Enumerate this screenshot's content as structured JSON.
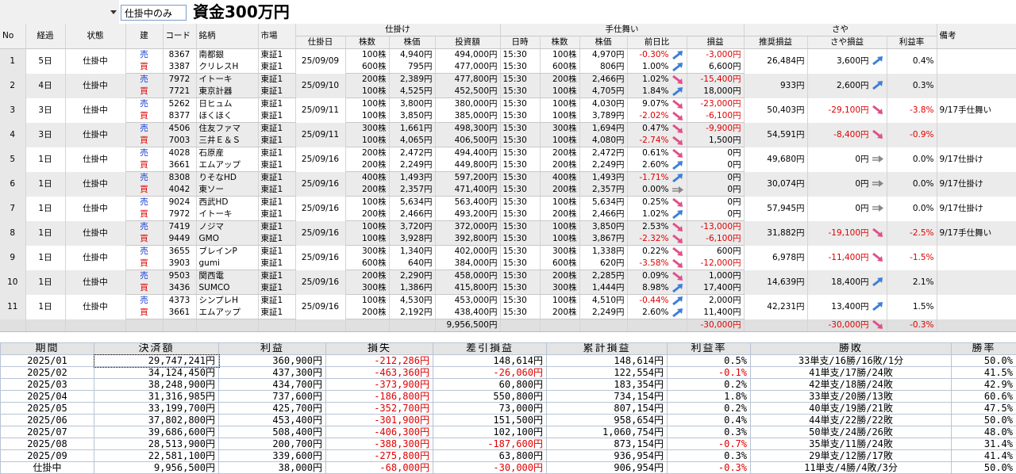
{
  "toolbar": {
    "filter": "仕掛中のみ",
    "title": "資金300万円"
  },
  "positions": {
    "header": {
      "no": "No",
      "elapsed": "経過",
      "status": "状態",
      "side": "建",
      "code": "コード",
      "name": "銘柄",
      "market": "市場",
      "entry": "仕掛け",
      "exit": "手仕舞い",
      "spread": "さや",
      "note": "備考",
      "entry_cols": [
        "仕掛日",
        "株数",
        "株価",
        "投資額"
      ],
      "exit_cols": [
        "日時",
        "株数",
        "株価",
        "前日比",
        "損益"
      ],
      "spread_cols": [
        "推奨損益",
        "さや損益",
        "利益率"
      ]
    },
    "rows": [
      {
        "no": "1",
        "elapsed": "5日",
        "status": "仕掛中",
        "date": "25/09/09",
        "legs": [
          {
            "side": "売",
            "code": "8367",
            "name": "南都銀",
            "market": "東証1",
            "shares": "100株",
            "price": "4,940円",
            "amount": "494,000円",
            "exit_time": "15:30",
            "exit_shares": "100株",
            "exit_price": "4,970円",
            "change": "-0.30%",
            "pnl": "-3,000円"
          },
          {
            "side": "買",
            "code": "3387",
            "name": "クリレスH",
            "market": "東証1",
            "shares": "600株",
            "price": "795円",
            "amount": "477,000円",
            "exit_time": "15:30",
            "exit_shares": "600株",
            "exit_price": "806円",
            "change": "1.00%",
            "pnl": "6,600円"
          }
        ],
        "recommended": "26,484円",
        "spread_pnl": "3,600円",
        "rate": "0.4%"
      },
      {
        "no": "2",
        "elapsed": "4日",
        "status": "仕掛中",
        "date": "25/09/10",
        "legs": [
          {
            "side": "売",
            "code": "7972",
            "name": "イトーキ",
            "market": "東証1",
            "shares": "200株",
            "price": "2,389円",
            "amount": "477,800円",
            "exit_time": "15:30",
            "exit_shares": "200株",
            "exit_price": "2,466円",
            "change": "1.02%",
            "pnl": "-15,400円"
          },
          {
            "side": "買",
            "code": "7721",
            "name": "東京計器",
            "market": "東証1",
            "shares": "100株",
            "price": "4,525円",
            "amount": "452,500円",
            "exit_time": "15:30",
            "exit_shares": "100株",
            "exit_price": "4,705円",
            "change": "1.84%",
            "pnl": "18,000円"
          }
        ],
        "recommended": "933円",
        "spread_pnl": "2,600円",
        "rate": "0.3%"
      },
      {
        "no": "3",
        "elapsed": "3日",
        "status": "仕掛中",
        "date": "25/09/11",
        "legs": [
          {
            "side": "売",
            "code": "5262",
            "name": "日ヒュム",
            "market": "東証1",
            "shares": "100株",
            "price": "3,800円",
            "amount": "380,000円",
            "exit_time": "15:30",
            "exit_shares": "100株",
            "exit_price": "4,030円",
            "change": "9.07%",
            "pnl": "-23,000円"
          },
          {
            "side": "買",
            "code": "8377",
            "name": "ほくほく",
            "market": "東証1",
            "shares": "100株",
            "price": "3,850円",
            "amount": "385,000円",
            "exit_time": "15:30",
            "exit_shares": "100株",
            "exit_price": "3,789円",
            "change": "-2.02%",
            "pnl": "-6,100円"
          }
        ],
        "recommended": "50,403円",
        "spread_pnl": "-29,100円",
        "rate": "-3.8%",
        "note": "9/17手仕舞い"
      },
      {
        "no": "4",
        "elapsed": "3日",
        "status": "仕掛中",
        "date": "25/09/11",
        "legs": [
          {
            "side": "売",
            "code": "4506",
            "name": "住友ファマ",
            "market": "東証1",
            "shares": "300株",
            "price": "1,661円",
            "amount": "498,300円",
            "exit_time": "15:30",
            "exit_shares": "300株",
            "exit_price": "1,694円",
            "change": "0.47%",
            "pnl": "-9,900円"
          },
          {
            "side": "買",
            "code": "7003",
            "name": "三井Ｅ＆Ｓ",
            "market": "東証1",
            "shares": "100株",
            "price": "4,065円",
            "amount": "406,500円",
            "exit_time": "15:30",
            "exit_shares": "100株",
            "exit_price": "4,080円",
            "change": "-2.74%",
            "pnl": "1,500円"
          }
        ],
        "recommended": "54,591円",
        "spread_pnl": "-8,400円",
        "rate": "-0.9%"
      },
      {
        "no": "5",
        "elapsed": "1日",
        "status": "仕掛中",
        "date": "25/09/16",
        "legs": [
          {
            "side": "売",
            "code": "4028",
            "name": "石原産",
            "market": "東証1",
            "shares": "200株",
            "price": "2,472円",
            "amount": "494,400円",
            "exit_time": "15:30",
            "exit_shares": "200株",
            "exit_price": "2,472円",
            "change": "0.61%",
            "pnl": "0円"
          },
          {
            "side": "買",
            "code": "3661",
            "name": "エムアップ",
            "market": "東証1",
            "shares": "200株",
            "price": "2,249円",
            "amount": "449,800円",
            "exit_time": "15:30",
            "exit_shares": "200株",
            "exit_price": "2,249円",
            "change": "2.60%",
            "pnl": "0円"
          }
        ],
        "recommended": "49,680円",
        "spread_pnl": "0円",
        "rate": "0.0%",
        "note": "9/17仕掛け"
      },
      {
        "no": "6",
        "elapsed": "1日",
        "status": "仕掛中",
        "date": "25/09/16",
        "legs": [
          {
            "side": "売",
            "code": "8308",
            "name": "りそなHD",
            "market": "東証1",
            "shares": "400株",
            "price": "1,493円",
            "amount": "597,200円",
            "exit_time": "15:30",
            "exit_shares": "400株",
            "exit_price": "1,493円",
            "change": "-1.71%",
            "pnl": "0円"
          },
          {
            "side": "買",
            "code": "4042",
            "name": "東ソー",
            "market": "東証1",
            "shares": "200株",
            "price": "2,357円",
            "amount": "471,400円",
            "exit_time": "15:30",
            "exit_shares": "200株",
            "exit_price": "2,357円",
            "change": "0.00%",
            "pnl": "0円"
          }
        ],
        "recommended": "30,074円",
        "spread_pnl": "0円",
        "rate": "0.0%",
        "note": "9/17仕掛け"
      },
      {
        "no": "7",
        "elapsed": "1日",
        "status": "仕掛中",
        "date": "25/09/16",
        "legs": [
          {
            "side": "売",
            "code": "9024",
            "name": "西武HD",
            "market": "東証1",
            "shares": "100株",
            "price": "5,634円",
            "amount": "563,400円",
            "exit_time": "15:30",
            "exit_shares": "100株",
            "exit_price": "5,634円",
            "change": "0.25%",
            "pnl": "0円"
          },
          {
            "side": "買",
            "code": "7972",
            "name": "イトーキ",
            "market": "東証1",
            "shares": "200株",
            "price": "2,466円",
            "amount": "493,200円",
            "exit_time": "15:30",
            "exit_shares": "200株",
            "exit_price": "2,466円",
            "change": "1.02%",
            "pnl": "0円"
          }
        ],
        "recommended": "57,945円",
        "spread_pnl": "0円",
        "rate": "0.0%",
        "note": "9/17仕掛け"
      },
      {
        "no": "8",
        "elapsed": "1日",
        "status": "仕掛中",
        "date": "25/09/16",
        "legs": [
          {
            "side": "売",
            "code": "7419",
            "name": "ノジマ",
            "market": "東証1",
            "shares": "100株",
            "price": "3,720円",
            "amount": "372,000円",
            "exit_time": "15:30",
            "exit_shares": "100株",
            "exit_price": "3,850円",
            "change": "2.53%",
            "pnl": "-13,000円"
          },
          {
            "side": "買",
            "code": "9449",
            "name": "GMO",
            "market": "東証1",
            "shares": "100株",
            "price": "3,928円",
            "amount": "392,800円",
            "exit_time": "15:30",
            "exit_shares": "100株",
            "exit_price": "3,867円",
            "change": "-2.32%",
            "pnl": "-6,100円"
          }
        ],
        "recommended": "31,882円",
        "spread_pnl": "-19,100円",
        "rate": "-2.5%",
        "note": "9/17手仕舞い"
      },
      {
        "no": "9",
        "elapsed": "1日",
        "status": "仕掛中",
        "date": "25/09/16",
        "legs": [
          {
            "side": "売",
            "code": "3655",
            "name": "ブレインP",
            "market": "東証1",
            "shares": "300株",
            "price": "1,340円",
            "amount": "402,000円",
            "exit_time": "15:30",
            "exit_shares": "300株",
            "exit_price": "1,338円",
            "change": "0.22%",
            "pnl": "600円"
          },
          {
            "side": "買",
            "code": "3903",
            "name": "gumi",
            "market": "東証1",
            "shares": "600株",
            "price": "640円",
            "amount": "384,000円",
            "exit_time": "15:30",
            "exit_shares": "600株",
            "exit_price": "620円",
            "change": "-3.58%",
            "pnl": "-12,000円"
          }
        ],
        "recommended": "6,978円",
        "spread_pnl": "-11,400円",
        "rate": "-1.5%"
      },
      {
        "no": "10",
        "elapsed": "1日",
        "status": "仕掛中",
        "date": "25/09/16",
        "legs": [
          {
            "side": "売",
            "code": "9503",
            "name": "関西電",
            "market": "東証1",
            "shares": "200株",
            "price": "2,290円",
            "amount": "458,000円",
            "exit_time": "15:30",
            "exit_shares": "200株",
            "exit_price": "2,285円",
            "change": "0.09%",
            "pnl": "1,000円"
          },
          {
            "side": "買",
            "code": "3436",
            "name": "SUMCO",
            "market": "東証1",
            "shares": "300株",
            "price": "1,386円",
            "amount": "415,800円",
            "exit_time": "15:30",
            "exit_shares": "300株",
            "exit_price": "1,444円",
            "change": "8.98%",
            "pnl": "17,400円"
          }
        ],
        "recommended": "14,639円",
        "spread_pnl": "18,400円",
        "rate": "2.1%"
      },
      {
        "no": "11",
        "elapsed": "1日",
        "status": "仕掛中",
        "date": "25/09/16",
        "legs": [
          {
            "side": "売",
            "code": "4373",
            "name": "シンプレH",
            "market": "東証1",
            "shares": "100株",
            "price": "4,530円",
            "amount": "453,000円",
            "exit_time": "15:30",
            "exit_shares": "100株",
            "exit_price": "4,510円",
            "change": "-0.44%",
            "pnl": "2,000円"
          },
          {
            "side": "買",
            "code": "3661",
            "name": "エムアップ",
            "market": "東証1",
            "shares": "200株",
            "price": "2,192円",
            "amount": "438,400円",
            "exit_time": "15:30",
            "exit_shares": "200株",
            "exit_price": "2,249円",
            "change": "2.60%",
            "pnl": "11,400円"
          }
        ],
        "recommended": "42,231円",
        "spread_pnl": "13,400円",
        "rate": "1.5%"
      }
    ],
    "total": {
      "amount": "9,956,500円",
      "pnl": "-30,000円",
      "spread_pnl": "-30,000円",
      "rate": "-0.3%"
    }
  },
  "summary": {
    "columns": [
      "期間",
      "決済額",
      "利益",
      "損失",
      "差引損益",
      "累計損益",
      "利益率",
      "勝敗",
      "勝率"
    ],
    "rows": [
      [
        "2025/01",
        "29,747,241円",
        "360,900円",
        "-212,286円",
        "148,614円",
        "148,614円",
        "0.5%",
        "33単支/16勝/16敗/1分",
        "50.0%"
      ],
      [
        "2025/02",
        "34,124,450円",
        "437,300円",
        "-463,360円",
        "-26,060円",
        "122,554円",
        "-0.1%",
        "41単支/17勝/24敗",
        "41.5%"
      ],
      [
        "2025/03",
        "38,248,900円",
        "434,700円",
        "-373,900円",
        "60,800円",
        "183,354円",
        "0.2%",
        "42単支/18勝/24敗",
        "42.9%"
      ],
      [
        "2025/04",
        "31,316,985円",
        "737,600円",
        "-186,800円",
        "550,800円",
        "734,154円",
        "1.8%",
        "33単支/20勝/13敗",
        "60.6%"
      ],
      [
        "2025/05",
        "33,199,700円",
        "425,700円",
        "-352,700円",
        "73,000円",
        "807,154円",
        "0.2%",
        "40単支/19勝/21敗",
        "47.5%"
      ],
      [
        "2025/06",
        "37,802,800円",
        "453,400円",
        "-301,900円",
        "151,500円",
        "958,654円",
        "0.4%",
        "44単支/22勝/22敗",
        "50.0%"
      ],
      [
        "2025/07",
        "39,686,600円",
        "508,400円",
        "-406,300円",
        "102,100円",
        "1,060,754円",
        "0.3%",
        "50単支/24勝/26敗",
        "48.0%"
      ],
      [
        "2025/08",
        "28,513,900円",
        "200,700円",
        "-388,300円",
        "-187,600円",
        "873,154円",
        "-0.7%",
        "35単支/11勝/24敗",
        "31.4%"
      ],
      [
        "2025/09",
        "22,581,100円",
        "339,600円",
        "-275,800円",
        "63,800円",
        "936,954円",
        "0.3%",
        "29単支/12勝/17敗",
        "41.4%"
      ],
      [
        "仕掛中",
        "9,956,500円",
        "38,000円",
        "-68,000円",
        "-30,000円",
        "906,954円",
        "-0.3%",
        "11単支/4勝/4敗/3分",
        "50.0%"
      ]
    ]
  }
}
